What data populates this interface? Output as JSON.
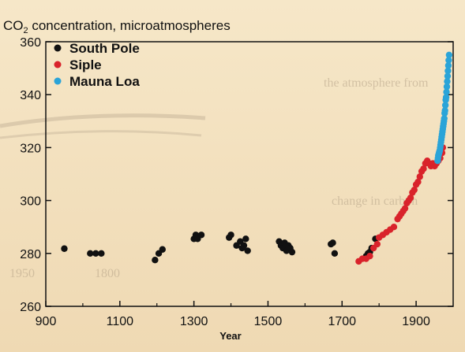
{
  "chart_data": {
    "type": "scatter",
    "title_prefix": "CO",
    "title_sub": "2",
    "title_suffix": " concentration, microatmospheres",
    "xlabel": "Year",
    "ylabel": "",
    "xlim": [
      900,
      2000
    ],
    "ylim": [
      260,
      360
    ],
    "xticks": [
      900,
      1100,
      1300,
      1500,
      1700,
      1900
    ],
    "yticks": [
      260,
      280,
      300,
      320,
      340,
      360
    ],
    "grid": false,
    "legend_position": "top-left",
    "series": [
      {
        "name": "South Pole",
        "color": "#111111",
        "points": [
          [
            950,
            281.8
          ],
          [
            1020,
            280
          ],
          [
            1035,
            280
          ],
          [
            1050,
            280
          ],
          [
            1195,
            277.5
          ],
          [
            1205,
            280
          ],
          [
            1215,
            281.5
          ],
          [
            1300,
            285.5
          ],
          [
            1305,
            287
          ],
          [
            1310,
            285.5
          ],
          [
            1320,
            287
          ],
          [
            1395,
            286
          ],
          [
            1400,
            287
          ],
          [
            1415,
            283
          ],
          [
            1425,
            284.5
          ],
          [
            1430,
            282
          ],
          [
            1435,
            283
          ],
          [
            1440,
            285.5
          ],
          [
            1445,
            281
          ],
          [
            1530,
            284.5
          ],
          [
            1535,
            283
          ],
          [
            1540,
            282
          ],
          [
            1545,
            284
          ],
          [
            1550,
            281
          ],
          [
            1555,
            283
          ],
          [
            1560,
            282
          ],
          [
            1565,
            280.5
          ],
          [
            1670,
            283.5
          ],
          [
            1675,
            284
          ],
          [
            1680,
            280
          ],
          [
            1765,
            279
          ],
          [
            1770,
            280
          ],
          [
            1775,
            280.5
          ],
          [
            1780,
            282
          ],
          [
            1790,
            285.5
          ]
        ]
      },
      {
        "name": "Siple",
        "color": "#d9232b",
        "points": [
          [
            1745,
            277
          ],
          [
            1755,
            278
          ],
          [
            1765,
            278
          ],
          [
            1775,
            279
          ],
          [
            1785,
            282
          ],
          [
            1795,
            283.5
          ],
          [
            1800,
            286
          ],
          [
            1810,
            287
          ],
          [
            1820,
            288
          ],
          [
            1830,
            289
          ],
          [
            1840,
            290
          ],
          [
            1850,
            293
          ],
          [
            1855,
            294
          ],
          [
            1860,
            295
          ],
          [
            1865,
            296
          ],
          [
            1870,
            297
          ],
          [
            1875,
            299
          ],
          [
            1880,
            300
          ],
          [
            1885,
            301
          ],
          [
            1890,
            303
          ],
          [
            1895,
            304
          ],
          [
            1900,
            306
          ],
          [
            1905,
            307
          ],
          [
            1910,
            309
          ],
          [
            1915,
            311
          ],
          [
            1920,
            312
          ],
          [
            1925,
            314
          ],
          [
            1930,
            315
          ],
          [
            1935,
            314
          ],
          [
            1940,
            313
          ],
          [
            1945,
            314
          ],
          [
            1950,
            313
          ],
          [
            1955,
            314
          ],
          [
            1960,
            315
          ],
          [
            1965,
            316
          ],
          [
            1970,
            318
          ],
          [
            1972,
            320
          ]
        ]
      },
      {
        "name": "Mauna Loa",
        "color": "#2aa4d8",
        "points": [
          [
            1958,
            315
          ],
          [
            1959,
            316
          ],
          [
            1960,
            317
          ],
          [
            1961,
            317.5
          ],
          [
            1962,
            318
          ],
          [
            1963,
            318.5
          ],
          [
            1964,
            319
          ],
          [
            1965,
            320
          ],
          [
            1966,
            321
          ],
          [
            1967,
            322
          ],
          [
            1968,
            323
          ],
          [
            1969,
            324
          ],
          [
            1970,
            325
          ],
          [
            1971,
            326
          ],
          [
            1972,
            327
          ],
          [
            1973,
            328
          ],
          [
            1974,
            329
          ],
          [
            1975,
            330
          ],
          [
            1976,
            331
          ],
          [
            1977,
            333
          ],
          [
            1978,
            334
          ],
          [
            1979,
            336
          ],
          [
            1980,
            338
          ],
          [
            1981,
            339
          ],
          [
            1982,
            341
          ],
          [
            1983,
            343
          ],
          [
            1984,
            345
          ],
          [
            1985,
            347
          ],
          [
            1986,
            349
          ],
          [
            1987,
            351
          ],
          [
            1988,
            353
          ],
          [
            1989,
            355
          ]
        ]
      }
    ]
  }
}
